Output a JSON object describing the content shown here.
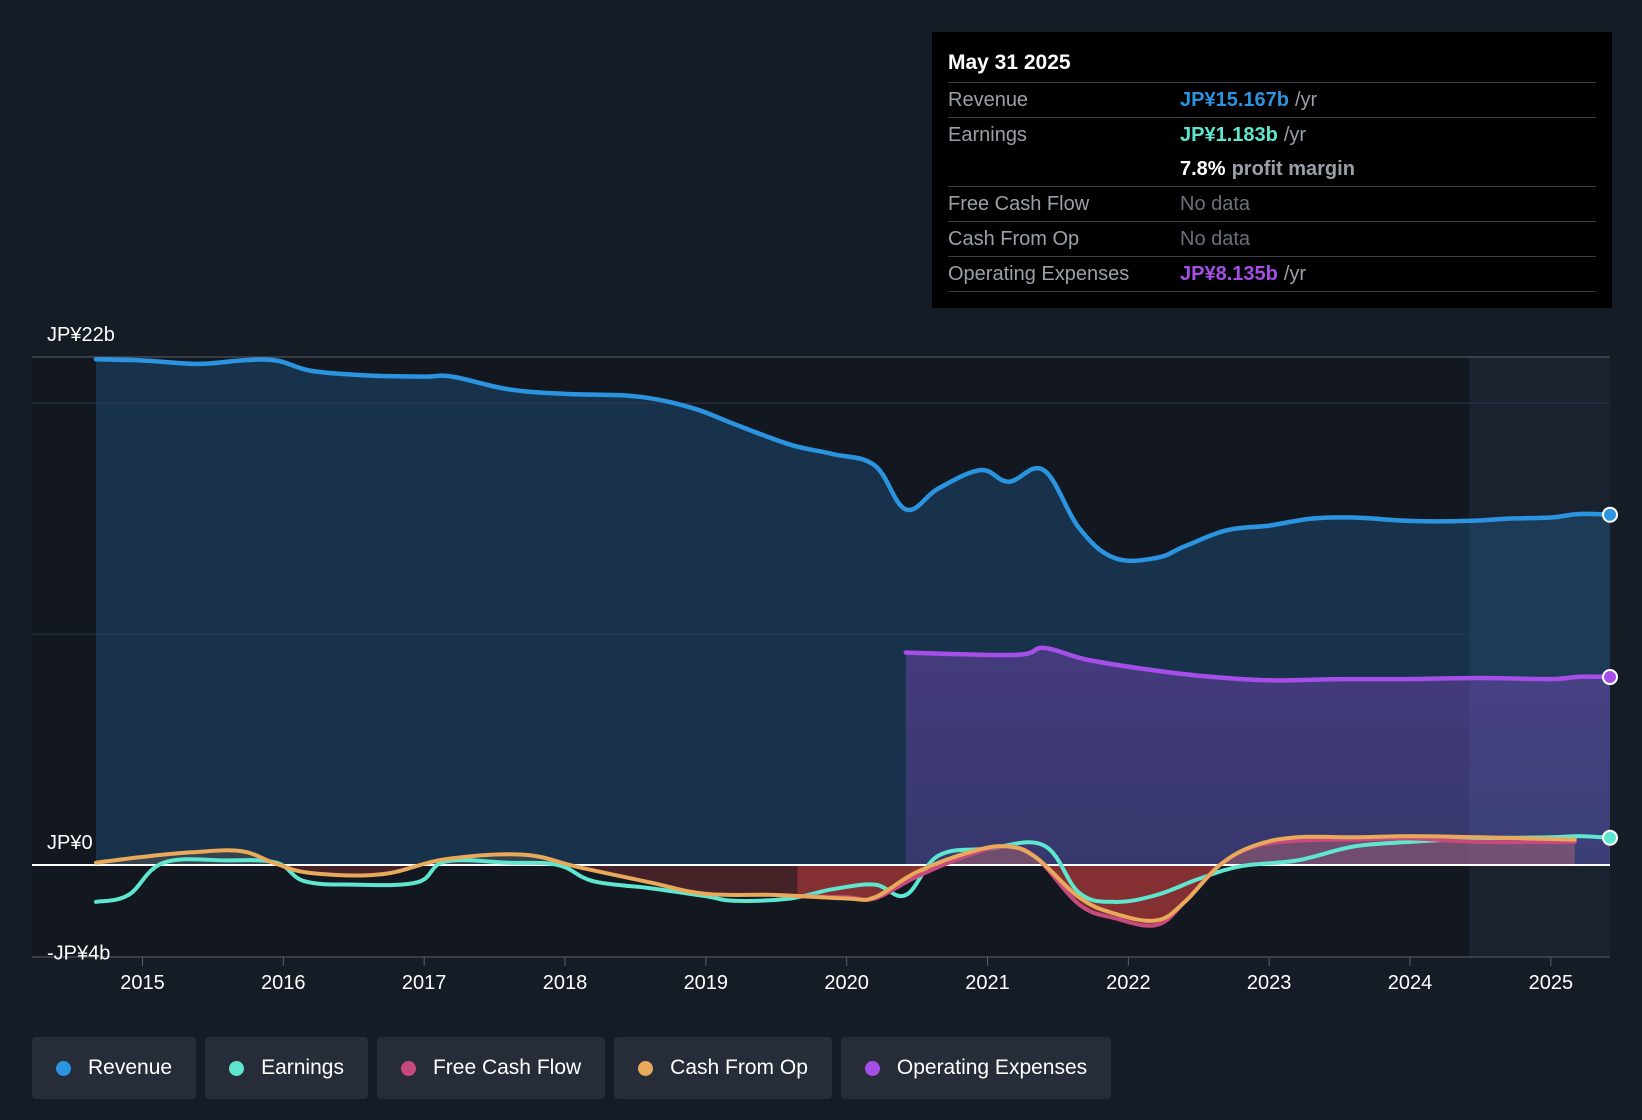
{
  "tooltip": {
    "date": "May 31 2025",
    "rows": {
      "revenue": {
        "label": "Revenue",
        "value": "JP¥15.167b",
        "unit": "/yr"
      },
      "earnings": {
        "label": "Earnings",
        "value": "JP¥1.183b",
        "unit": "/yr"
      },
      "margin": {
        "value": "7.8%",
        "unit": "profit margin"
      },
      "fcf": {
        "label": "Free Cash Flow",
        "value": "No data"
      },
      "cfo": {
        "label": "Cash From Op",
        "value": "No data"
      },
      "opex": {
        "label": "Operating Expenses",
        "value": "JP¥8.135b",
        "unit": "/yr"
      }
    }
  },
  "legend": [
    {
      "label": "Revenue",
      "color": "#2b94e0"
    },
    {
      "label": "Earnings",
      "color": "#5ee6cf"
    },
    {
      "label": "Free Cash Flow",
      "color": "#c74a7f"
    },
    {
      "label": "Cash From Op",
      "color": "#e8a95a"
    },
    {
      "label": "Operating Expenses",
      "color": "#a54ee8"
    }
  ],
  "chart_data": {
    "type": "area",
    "y_unit": "JP¥ billions",
    "ylim": [
      -4,
      22
    ],
    "y_tick_labels": [
      {
        "value": 22,
        "label": "JP¥22b"
      },
      {
        "value": 0,
        "label": "JP¥0"
      },
      {
        "value": -4,
        "label": "-JP¥4b"
      }
    ],
    "xlim": [
      2014.67,
      2025.42
    ],
    "x_ticks": [
      2015,
      2016,
      2017,
      2018,
      2019,
      2020,
      2021,
      2022,
      2023,
      2024,
      2025
    ],
    "x_tick_labels": [
      "2015",
      "2016",
      "2017",
      "2018",
      "2019",
      "2020",
      "2021",
      "2022",
      "2023",
      "2024",
      "2025"
    ],
    "forecast_start": 2024.42,
    "series": [
      {
        "name": "Revenue",
        "color": "#2b94e0",
        "x": [
          2014.67,
          2015.0,
          2015.4,
          2015.7,
          2015.95,
          2016.2,
          2016.6,
          2017.0,
          2017.2,
          2017.6,
          2018.0,
          2018.5,
          2018.9,
          2019.2,
          2019.6,
          2019.9,
          2020.2,
          2020.42,
          2020.65,
          2020.95,
          2021.15,
          2021.4,
          2021.65,
          2021.9,
          2022.2,
          2022.4,
          2022.7,
          2023.0,
          2023.3,
          2023.6,
          2024.0,
          2024.4,
          2024.7,
          2025.0,
          2025.2,
          2025.42
        ],
        "values": [
          21.9,
          21.85,
          21.7,
          21.85,
          21.85,
          21.4,
          21.2,
          21.15,
          21.15,
          20.6,
          20.4,
          20.3,
          19.8,
          19.1,
          18.2,
          17.8,
          17.3,
          15.4,
          16.3,
          17.1,
          16.6,
          17.1,
          14.6,
          13.3,
          13.3,
          13.8,
          14.5,
          14.7,
          15.0,
          15.05,
          14.9,
          14.9,
          15.0,
          15.05,
          15.2,
          15.17
        ]
      },
      {
        "name": "Operating Expenses",
        "color": "#a54ee8",
        "x": [
          2020.42,
          2021.2,
          2021.4,
          2021.7,
          2022.1,
          2022.5,
          2023.0,
          2023.5,
          2024.0,
          2024.5,
          2025.0,
          2025.2,
          2025.42
        ],
        "values": [
          9.2,
          9.1,
          9.4,
          8.9,
          8.5,
          8.2,
          8.0,
          8.05,
          8.05,
          8.1,
          8.05,
          8.15,
          8.14
        ]
      },
      {
        "name": "Earnings",
        "color": "#5ee6cf",
        "x": [
          2014.67,
          2014.9,
          2015.15,
          2015.6,
          2015.95,
          2016.15,
          2016.5,
          2016.95,
          2017.15,
          2017.6,
          2017.95,
          2018.2,
          2018.6,
          2019.0,
          2019.2,
          2019.6,
          2019.9,
          2020.2,
          2020.42,
          2020.65,
          2021.0,
          2021.4,
          2021.65,
          2021.9,
          2022.2,
          2022.5,
          2022.8,
          2023.2,
          2023.6,
          2024.0,
          2024.5,
          2025.0,
          2025.2,
          2025.42
        ],
        "values": [
          -1.6,
          -1.3,
          0.1,
          0.2,
          0.1,
          -0.7,
          -0.85,
          -0.75,
          0.15,
          0.1,
          0.0,
          -0.7,
          -1.0,
          -1.35,
          -1.55,
          -1.45,
          -1.05,
          -0.85,
          -1.3,
          0.4,
          0.7,
          0.85,
          -1.2,
          -1.6,
          -1.3,
          -0.6,
          -0.05,
          0.2,
          0.8,
          1.0,
          1.15,
          1.2,
          1.25,
          1.18
        ]
      },
      {
        "name": "Free Cash Flow",
        "color": "#c74a7f",
        "x": [
          2019.65,
          2020.0,
          2020.2,
          2020.5,
          2020.9,
          2021.15,
          2021.35,
          2021.65,
          2021.9,
          2022.2,
          2022.4,
          2022.65,
          2022.9,
          2023.2,
          2023.6,
          2024.0,
          2024.5,
          2025.17
        ],
        "values": [
          -1.35,
          -1.4,
          -1.45,
          -0.5,
          0.5,
          0.8,
          0.3,
          -1.7,
          -2.3,
          -2.6,
          -1.6,
          0.0,
          0.8,
          1.05,
          1.1,
          1.15,
          1.0,
          1.0
        ]
      },
      {
        "name": "Cash From Op",
        "color": "#e8a95a",
        "x": [
          2014.67,
          2015.0,
          2015.35,
          2015.7,
          2015.95,
          2016.2,
          2016.7,
          2017.15,
          2017.7,
          2018.1,
          2018.6,
          2019.0,
          2019.5,
          2020.0,
          2020.2,
          2020.5,
          2020.9,
          2021.15,
          2021.35,
          2021.65,
          2021.9,
          2022.2,
          2022.4,
          2022.65,
          2022.9,
          2023.2,
          2023.6,
          2024.0,
          2024.5,
          2025.17
        ],
        "values": [
          0.1,
          0.35,
          0.55,
          0.6,
          0.05,
          -0.35,
          -0.4,
          0.25,
          0.45,
          -0.1,
          -0.75,
          -1.25,
          -1.3,
          -1.45,
          -1.4,
          -0.3,
          0.6,
          0.8,
          0.3,
          -1.4,
          -2.1,
          -2.4,
          -1.6,
          0.0,
          0.85,
          1.2,
          1.2,
          1.25,
          1.2,
          1.1
        ]
      }
    ]
  }
}
